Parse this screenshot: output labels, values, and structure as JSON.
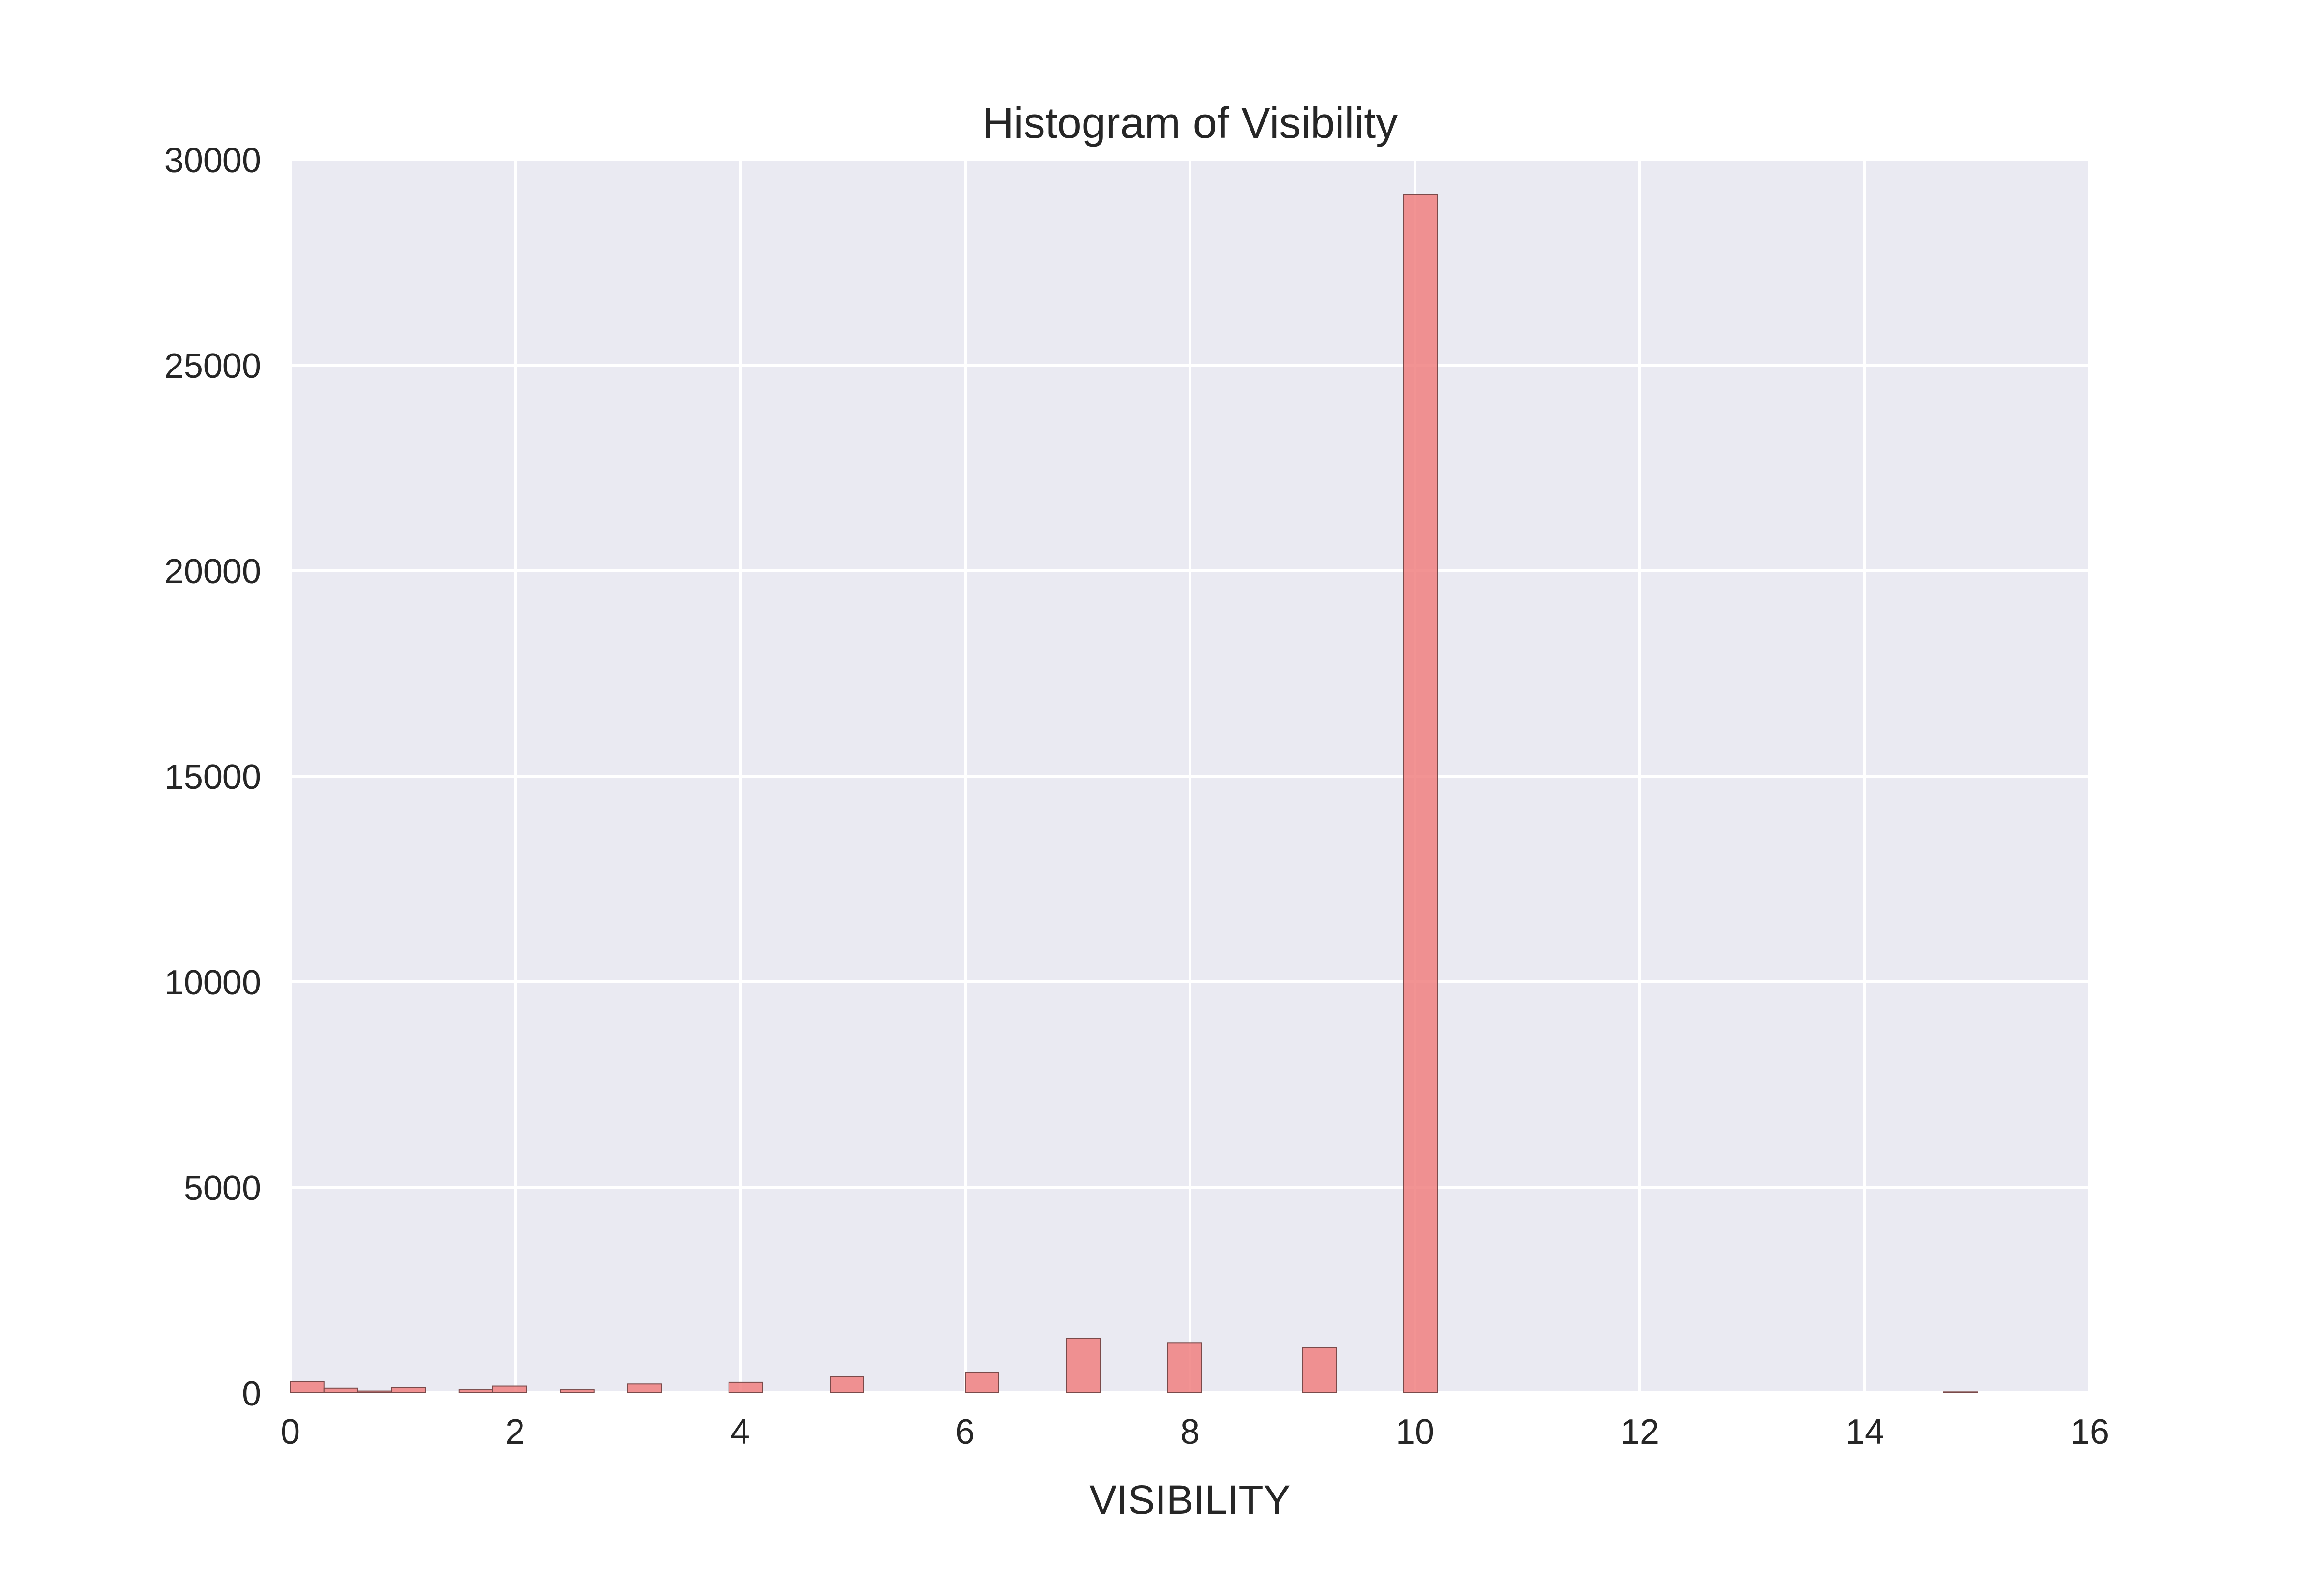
{
  "chart_data": {
    "type": "bar",
    "title": "Histogram of Visibility",
    "xlabel": "VISIBILITY",
    "ylabel": "",
    "xlim": [
      0,
      16
    ],
    "ylim": [
      0,
      30000
    ],
    "xticks": [
      0,
      2,
      4,
      6,
      8,
      10,
      12,
      14,
      16
    ],
    "yticks": [
      0,
      5000,
      10000,
      15000,
      20000,
      25000,
      30000
    ],
    "grid": true,
    "legend": "none",
    "bin_width": 0.3,
    "series": [
      {
        "bins": [
          {
            "start": 0.0,
            "end": 0.3,
            "count": 280
          },
          {
            "start": 0.3,
            "end": 0.6,
            "count": 120
          },
          {
            "start": 0.6,
            "end": 0.9,
            "count": 40
          },
          {
            "start": 0.9,
            "end": 1.2,
            "count": 130
          },
          {
            "start": 1.5,
            "end": 1.8,
            "count": 70
          },
          {
            "start": 1.8,
            "end": 2.1,
            "count": 170
          },
          {
            "start": 2.4,
            "end": 2.7,
            "count": 70
          },
          {
            "start": 3.0,
            "end": 3.3,
            "count": 220
          },
          {
            "start": 3.9,
            "end": 4.2,
            "count": 260
          },
          {
            "start": 4.8,
            "end": 5.1,
            "count": 390
          },
          {
            "start": 6.0,
            "end": 6.3,
            "count": 500
          },
          {
            "start": 6.9,
            "end": 7.2,
            "count": 1320
          },
          {
            "start": 7.8,
            "end": 8.1,
            "count": 1220
          },
          {
            "start": 9.0,
            "end": 9.3,
            "count": 1100
          },
          {
            "start": 9.9,
            "end": 10.2,
            "count": 29150
          },
          {
            "start": 14.7,
            "end": 15.0,
            "count": 20
          }
        ]
      }
    ],
    "colors": {
      "background": "#eaeaf2",
      "grid": "#ffffff",
      "bar_fill": "#f08080",
      "bar_edge": "#7a4a4a",
      "text": "#262626"
    }
  }
}
